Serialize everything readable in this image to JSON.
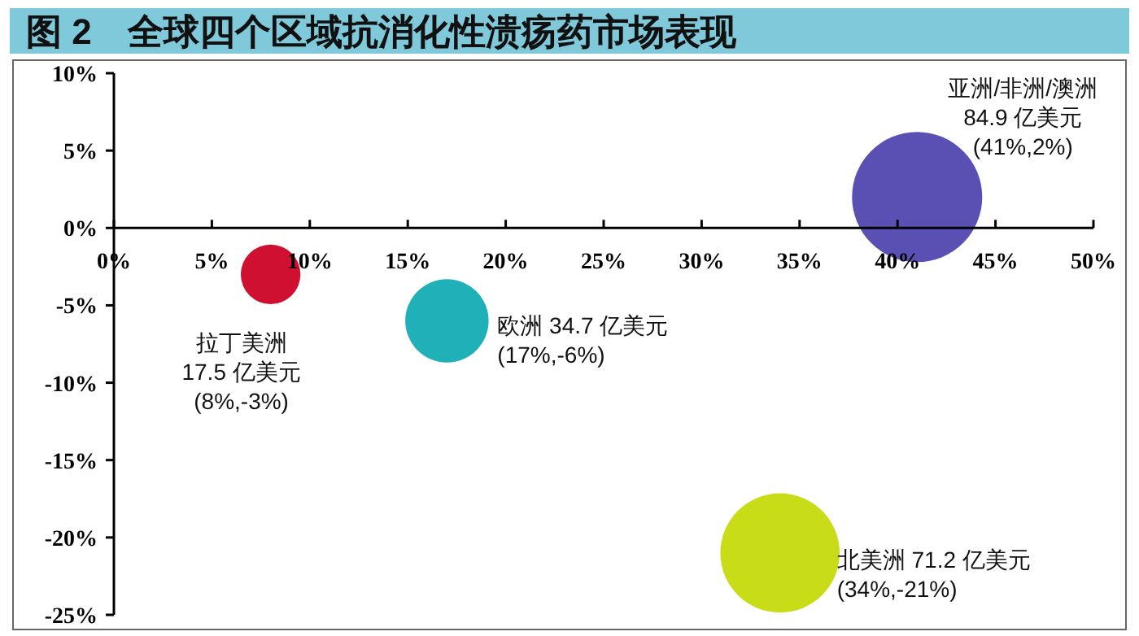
{
  "chart_data": {
    "type": "bubble",
    "title": "图 2　全球四个区域抗消化性溃疡药市场表现",
    "xlim": [
      0,
      50
    ],
    "xticks": [
      {
        "value": 0,
        "label": "0%"
      },
      {
        "value": 5,
        "label": "5%"
      },
      {
        "value": 10,
        "label": "10%"
      },
      {
        "value": 15,
        "label": "15%"
      },
      {
        "value": 20,
        "label": "20%"
      },
      {
        "value": 25,
        "label": "25%"
      },
      {
        "value": 30,
        "label": "30%"
      },
      {
        "value": 35,
        "label": "35%"
      },
      {
        "value": 40,
        "label": "40%"
      },
      {
        "value": 45,
        "label": "45%"
      },
      {
        "value": 50,
        "label": "50%"
      }
    ],
    "ylim": [
      -25,
      10
    ],
    "yticks": [
      {
        "value": -25,
        "label": "-25%"
      },
      {
        "value": -20,
        "label": "-20%"
      },
      {
        "value": -15,
        "label": "-15%"
      },
      {
        "value": -10,
        "label": "-10%"
      },
      {
        "value": -5,
        "label": "-5%"
      },
      {
        "value": 0,
        "label": "0%"
      },
      {
        "value": 5,
        "label": "5%"
      },
      {
        "value": 10,
        "label": "10%"
      }
    ],
    "grid": false,
    "series": [
      {
        "color": "#d01030",
        "x": [
          8
        ],
        "values": [
          -3
        ],
        "sizes": [
          0.21
        ]
      },
      {
        "color": "#20b0b8",
        "x": [
          17
        ],
        "values": [
          -6
        ],
        "sizes": [
          0.41
        ]
      },
      {
        "color": "#c8dc18",
        "x": [
          34
        ],
        "values": [
          -21
        ],
        "sizes": [
          0.84
        ]
      },
      {
        "color": "#5a50b4",
        "x": [
          41
        ],
        "values": [
          2
        ],
        "sizes": [
          1
        ]
      }
    ],
    "annotations": [
      {
        "text": "拉丁美洲\n17.5 亿美元\n(8%,-3%)",
        "x": 8,
        "y": -3
      },
      {
        "text": "欧洲 34.7 亿美元\n(17%,-6%)",
        "x": 17,
        "y": -6
      },
      {
        "text": "北美洲 71.2 亿美元\n(34%,-21%)",
        "x": 34,
        "y": -21
      },
      {
        "text": "亚洲/非洲/澳洲\n84.9 亿美元\n(41%,2%)",
        "x": 41,
        "y": 2
      }
    ]
  }
}
